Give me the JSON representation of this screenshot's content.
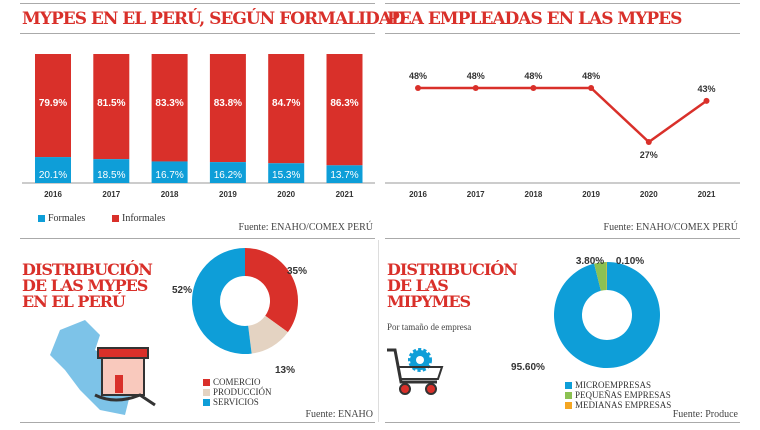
{
  "colors": {
    "red": "#d9302a",
    "blue": "#0e9ed8",
    "beige": "#e4d3c2",
    "green": "#8cc152",
    "orange": "#f5a623"
  },
  "chart_data": [
    {
      "type": "bar",
      "stacked": true,
      "title": "MYPES EN EL PERÚ, SEGÚN FORMALIDAD",
      "categories": [
        "2016",
        "2017",
        "2018",
        "2019",
        "2020",
        "2021"
      ],
      "series": [
        {
          "name": "Formales",
          "values": [
            20.1,
            18.5,
            16.7,
            16.2,
            15.3,
            13.7
          ],
          "labels": [
            "20.1%",
            "18.5%",
            "16.7%",
            "16.2%",
            "15.3%",
            "13.7%"
          ]
        },
        {
          "name": "Informales",
          "values": [
            79.9,
            81.5,
            83.3,
            83.8,
            84.7,
            86.3
          ],
          "labels": [
            "79.9%",
            "81.5%",
            "83.3%",
            "83.8%",
            "84.7%",
            "86.3%"
          ]
        }
      ],
      "ylim": [
        0,
        100
      ],
      "legend": "bottom-left",
      "source": "Fuente: ENAHO/COMEX PERÚ"
    },
    {
      "type": "line",
      "title": "PEA EMPLEADAS EN LAS MYPES",
      "categories": [
        "2016",
        "2017",
        "2018",
        "2019",
        "2020",
        "2021"
      ],
      "values": [
        48,
        48,
        48,
        48,
        27,
        43
      ],
      "labels": [
        "48%",
        "48%",
        "48%",
        "48%",
        "27%",
        "43%"
      ],
      "source": "Fuente: ENAHO/COMEX PERÚ"
    },
    {
      "type": "pie",
      "donut": true,
      "title": "DISTRIBUCIÓN DE LAS MYPES EN EL PERÚ",
      "categories": [
        "COMERCIO",
        "PRODUCCIÓN",
        "SERVICIOS"
      ],
      "values": [
        35,
        13,
        52
      ],
      "labels": [
        "35%",
        "13%",
        "52%"
      ],
      "source": "Fuente: ENAHO"
    },
    {
      "type": "pie",
      "donut": true,
      "title": "DISTRIBUCIÓN DE LAS MIPYMES",
      "subtitle": "Por tamaño de empresa",
      "categories": [
        "MICROEMPRESAS",
        "PEQUEÑAS EMPRESAS",
        "MEDIANAS EMPRESAS"
      ],
      "values": [
        95.6,
        3.8,
        0.1
      ],
      "labels": [
        "95.60%",
        "3.80%",
        "0.10%"
      ],
      "source": "Fuente: Produce"
    }
  ]
}
